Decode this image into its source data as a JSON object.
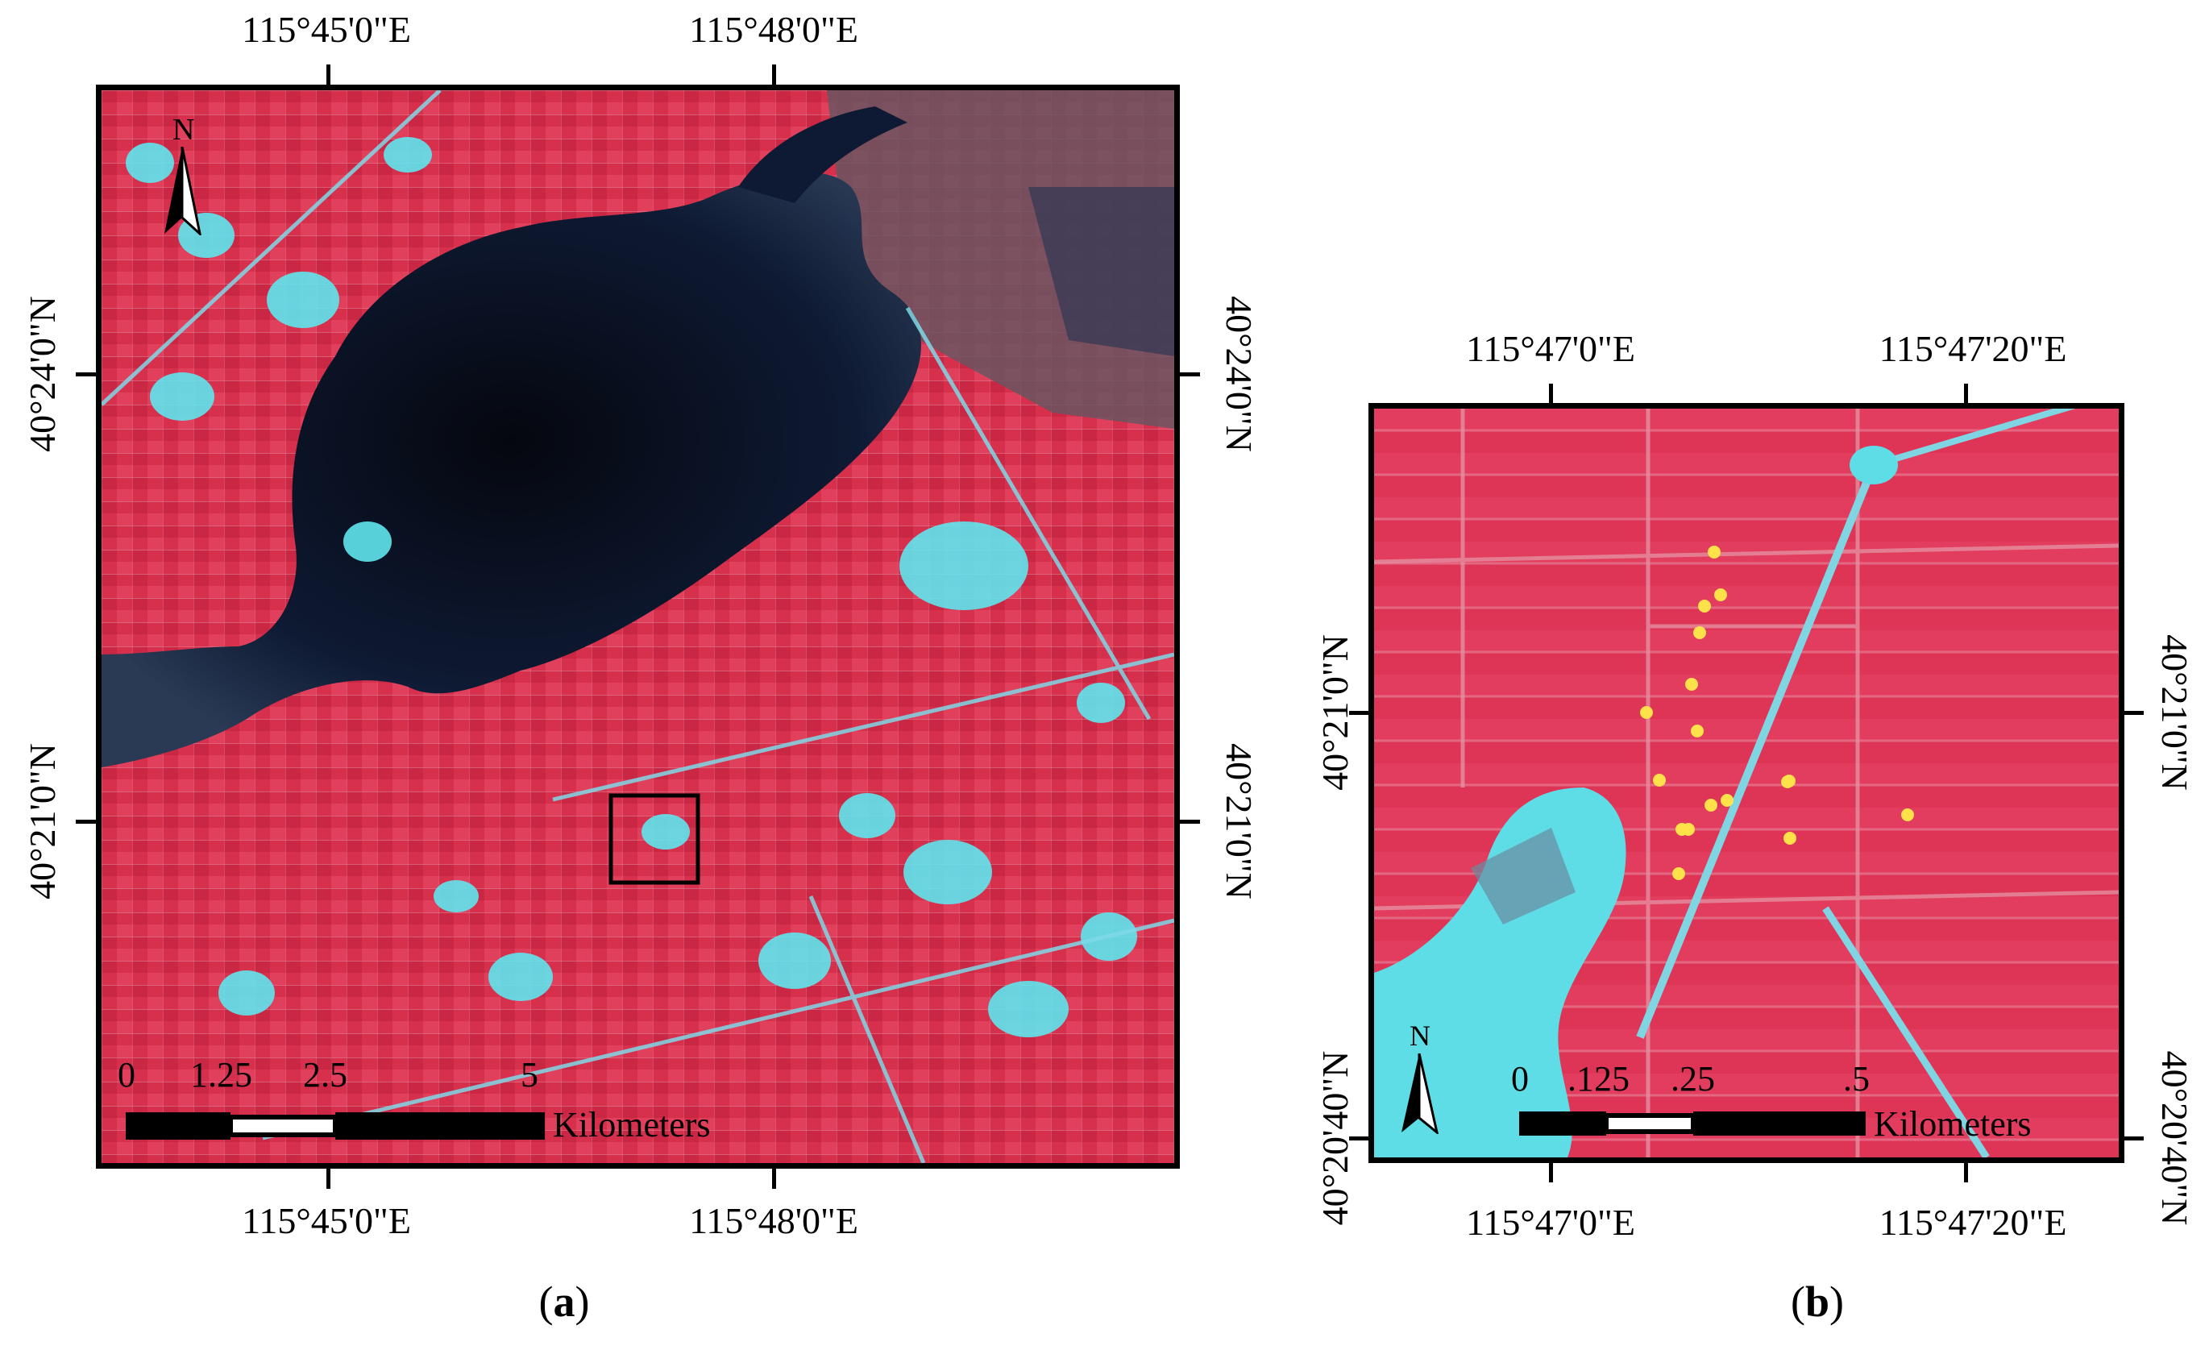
{
  "panel_a": {
    "caption_open": "(",
    "caption_letter": "a",
    "caption_close": ")",
    "lon_labels": [
      "115°45'0\"E",
      "115°48'0\"E"
    ],
    "lat_labels": [
      "40°24'0\"N",
      "40°21'0\"N"
    ],
    "north": "N",
    "scale_ticks": [
      "0",
      "1.25",
      "2.5",
      "5"
    ],
    "scale_unit": "Kilometers"
  },
  "panel_b": {
    "caption_open": "(",
    "caption_letter": "b",
    "caption_close": ")",
    "lon_labels": [
      "115°47'0\"E",
      "115°47'20\"E"
    ],
    "lat_labels": [
      "40°21'0\"N",
      "40°20'40\"N"
    ],
    "north": "N",
    "scale_ticks": [
      "0",
      ".125",
      ".25",
      ".5"
    ],
    "scale_unit": "Kilometers",
    "sample_points_color": "#ffe24a"
  },
  "colors": {
    "vegetation": "#d8304f",
    "water": "#0c1530",
    "urban": "#5fe6ee",
    "frame": "#000000"
  }
}
